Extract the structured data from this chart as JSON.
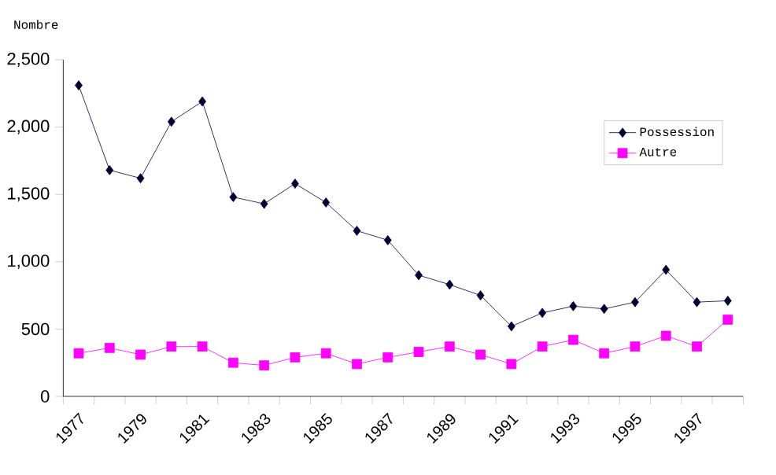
{
  "chart_data": {
    "type": "line",
    "ylabel": "Nombre",
    "categories": [
      "1977",
      null,
      "1979",
      null,
      "1981",
      null,
      "1983",
      null,
      "1985",
      null,
      "1987",
      null,
      "1989",
      null,
      "1991",
      null,
      "1993",
      null,
      "1995",
      null,
      "1997",
      null
    ],
    "series": [
      {
        "name": "Possession",
        "color": "#000033",
        "marker": "diamond",
        "values": [
          2310,
          1680,
          1620,
          2040,
          2190,
          1480,
          1430,
          1580,
          1440,
          1230,
          1160,
          900,
          830,
          750,
          520,
          620,
          670,
          650,
          700,
          940,
          700,
          710
        ]
      },
      {
        "name": "Autre",
        "color": "#ff00ff",
        "marker": "square",
        "values": [
          320,
          360,
          310,
          370,
          370,
          250,
          230,
          290,
          320,
          240,
          290,
          330,
          370,
          310,
          240,
          370,
          420,
          320,
          370,
          450,
          370,
          570
        ]
      }
    ],
    "ylim": [
      0,
      2500
    ],
    "yticks": [
      0,
      {
        "value": 500,
        "label": "500"
      },
      {
        "value": 1000,
        "label": "1,000"
      },
      {
        "value": 1500,
        "label": "1,500"
      },
      {
        "value": 2000,
        "label": "2,000"
      },
      {
        "value": 2500,
        "label": "2,500"
      }
    ],
    "legend": "right",
    "grid": false
  }
}
